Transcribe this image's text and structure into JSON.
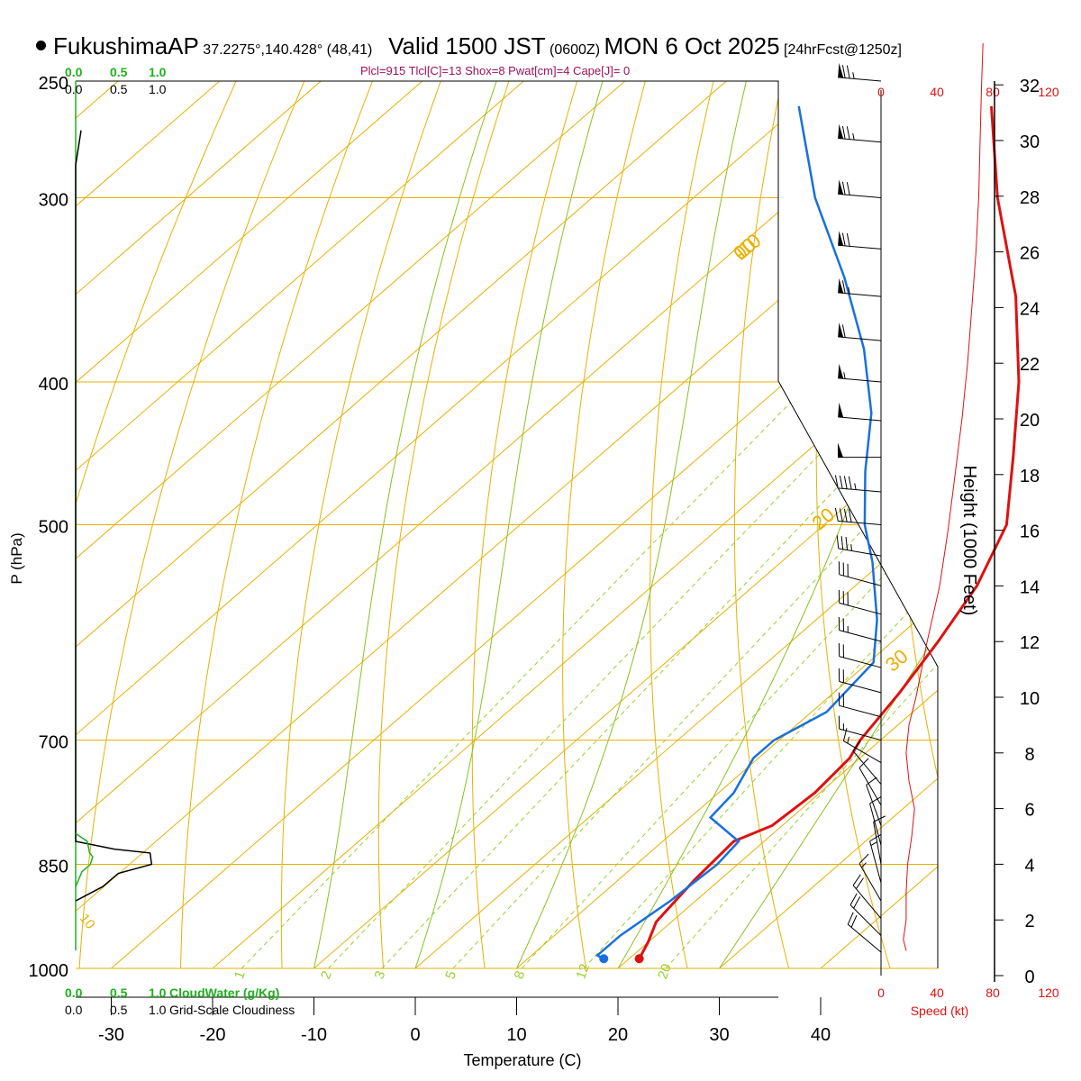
{
  "header": {
    "station": "FukushimaAP",
    "coords": "37.2275°,140.428° (48,41)",
    "valid_main": "Valid 1500 JST",
    "valid_z": "(0600Z)",
    "date": "MON 6 Oct 2025",
    "fcst": "[24hrFcst@1250z]",
    "params": "Plcl=915 Tlcl[C]=13 Shox=8 Pwat[cm]=4 Cape[J]= 0"
  },
  "colors": {
    "isotherm": "#e8b000",
    "dry_adiabat": "#e8b000",
    "moist_adiabat": "#8ac020",
    "mixing_ratio": "#9ad030",
    "temperature": "#e01010",
    "dewpoint": "#1870e0",
    "cloud_water": "#20b020",
    "speed": "#e01010"
  },
  "chart_data": {
    "type": "skew-t",
    "title": "FukushimaAP Valid 1500 JST (0600Z) MON 6 Oct 2025",
    "xlabel": "Temperature (C)",
    "ylabel": "P (hPa)",
    "height_label": "Height (1000 Feet)",
    "x_ticks": [
      -30,
      -20,
      -10,
      0,
      10,
      20,
      30,
      40
    ],
    "p_ticks": [
      250,
      300,
      400,
      500,
      700,
      850,
      1000
    ],
    "height_ticks": [
      0,
      2,
      4,
      6,
      8,
      10,
      12,
      14,
      16,
      18,
      20,
      22,
      24,
      26,
      28,
      30,
      32
    ],
    "isotherm_temps": [
      -140,
      -130,
      -120,
      -110,
      -100,
      -90,
      -80,
      -70,
      -60,
      -50,
      -40,
      -30,
      -20,
      -10,
      0,
      10,
      20,
      30,
      40
    ],
    "dry_adiabat_thetas": [
      230,
      240,
      250,
      260,
      270,
      280,
      290,
      300,
      310,
      320,
      330,
      340,
      350,
      360,
      370,
      380,
      390,
      400,
      410,
      420,
      430,
      440,
      450,
      460,
      470
    ],
    "moist_adiabat_temps": [
      -10,
      0,
      10,
      20,
      30
    ],
    "moist_adiabat_labels": [
      "-10",
      "0",
      "10",
      "20",
      "30"
    ],
    "mixing_ratios": [
      1,
      2,
      3,
      5,
      8,
      12,
      20
    ],
    "mixing_ratio_labels": [
      "1",
      "2",
      "3",
      "5",
      "8",
      "12",
      "20"
    ],
    "temperature": [
      {
        "p": 985,
        "t": 21
      },
      {
        "p": 960,
        "t": 20
      },
      {
        "p": 930,
        "t": 18.5
      },
      {
        "p": 900,
        "t": 18
      },
      {
        "p": 870,
        "t": 17.5
      },
      {
        "p": 820,
        "t": 17
      },
      {
        "p": 800,
        "t": 19
      },
      {
        "p": 760,
        "t": 19.5
      },
      {
        "p": 720,
        "t": 19
      },
      {
        "p": 700,
        "t": 18
      },
      {
        "p": 650,
        "t": 16.5
      },
      {
        "p": 600,
        "t": 14.5
      },
      {
        "p": 550,
        "t": 12
      },
      {
        "p": 500,
        "t": 8
      },
      {
        "p": 450,
        "t": 1
      },
      {
        "p": 400,
        "t": -7
      },
      {
        "p": 350,
        "t": -17
      },
      {
        "p": 300,
        "t": -30
      },
      {
        "p": 260,
        "t": -41
      }
    ],
    "dewpoint": [
      {
        "p": 985,
        "t": 17.5
      },
      {
        "p": 980,
        "t": 16.5
      },
      {
        "p": 950,
        "t": 16.5
      },
      {
        "p": 900,
        "t": 17.5
      },
      {
        "p": 850,
        "t": 18
      },
      {
        "p": 820,
        "t": 17.5
      },
      {
        "p": 790,
        "t": 12
      },
      {
        "p": 760,
        "t": 11.5
      },
      {
        "p": 720,
        "t": 9.5
      },
      {
        "p": 700,
        "t": 9.5
      },
      {
        "p": 670,
        "t": 11.5
      },
      {
        "p": 620,
        "t": 10.5
      },
      {
        "p": 580,
        "t": 6
      },
      {
        "p": 530,
        "t": -1
      },
      {
        "p": 500,
        "t": -6
      },
      {
        "p": 460,
        "t": -12
      },
      {
        "p": 420,
        "t": -18
      },
      {
        "p": 380,
        "t": -26
      },
      {
        "p": 340,
        "t": -36
      },
      {
        "p": 300,
        "t": -48
      },
      {
        "p": 260,
        "t": -60
      }
    ],
    "cloud_water_axis": {
      "label": "CloudWater (g/Kg)",
      "ticks": [
        "0.0",
        "0.5",
        "1.0"
      ],
      "xlim": [
        0,
        1.0
      ]
    },
    "cloudiness_axis": {
      "label": "Grid-Scale Cloudiness",
      "ticks": [
        "0.0",
        "0.5",
        "1.0"
      ],
      "xlim": [
        0,
        1.0
      ]
    },
    "cloud_water": [
      {
        "p": 810,
        "v": 0.0
      },
      {
        "p": 820,
        "v": 0.15
      },
      {
        "p": 835,
        "v": 0.18
      },
      {
        "p": 840,
        "v": 0.22
      },
      {
        "p": 850,
        "v": 0.19
      },
      {
        "p": 860,
        "v": 0.08
      },
      {
        "p": 880,
        "v": 0.0
      }
    ],
    "cloudiness": [
      {
        "p": 270,
        "v": 0.07
      },
      {
        "p": 285,
        "v": 0.0
      },
      {
        "p": 820,
        "v": 0.0
      },
      {
        "p": 830,
        "v": 0.5
      },
      {
        "p": 835,
        "v": 0.96
      },
      {
        "p": 850,
        "v": 0.98
      },
      {
        "p": 862,
        "v": 0.55
      },
      {
        "p": 880,
        "v": 0.35
      },
      {
        "p": 900,
        "v": 0.0
      }
    ],
    "wind_speed_axis": {
      "label": "Speed (kt)",
      "ticks": [
        "0",
        "40",
        "80",
        "120"
      ],
      "xlim": [
        0,
        120
      ]
    },
    "wind_speed_profile": [
      {
        "h": 0.9,
        "s": 18
      },
      {
        "h": 1.3,
        "s": 16
      },
      {
        "h": 2,
        "s": 18
      },
      {
        "h": 3,
        "s": 18
      },
      {
        "h": 4,
        "s": 19
      },
      {
        "h": 5,
        "s": 22
      },
      {
        "h": 6,
        "s": 24
      },
      {
        "h": 7,
        "s": 20
      },
      {
        "h": 8,
        "s": 18
      },
      {
        "h": 9,
        "s": 20
      },
      {
        "h": 10,
        "s": 25
      },
      {
        "h": 12,
        "s": 33
      },
      {
        "h": 14,
        "s": 42
      },
      {
        "h": 16,
        "s": 48
      },
      {
        "h": 18,
        "s": 53
      },
      {
        "h": 20,
        "s": 58
      },
      {
        "h": 22,
        "s": 62
      },
      {
        "h": 24,
        "s": 65
      },
      {
        "h": 26,
        "s": 68
      },
      {
        "h": 28,
        "s": 70
      },
      {
        "h": 30,
        "s": 71
      },
      {
        "h": 32,
        "s": 72
      },
      {
        "h": 33.5,
        "s": 73
      }
    ],
    "wind_barbs": [
      {
        "p": 250,
        "spd": 75,
        "dir": 275
      },
      {
        "p": 275,
        "spd": 75,
        "dir": 275
      },
      {
        "p": 300,
        "spd": 70,
        "dir": 275
      },
      {
        "p": 325,
        "spd": 70,
        "dir": 275
      },
      {
        "p": 350,
        "spd": 65,
        "dir": 275
      },
      {
        "p": 375,
        "spd": 60,
        "dir": 275
      },
      {
        "p": 400,
        "spd": 55,
        "dir": 275
      },
      {
        "p": 425,
        "spd": 50,
        "dir": 275
      },
      {
        "p": 450,
        "spd": 50,
        "dir": 270
      },
      {
        "p": 475,
        "spd": 45,
        "dir": 275
      },
      {
        "p": 500,
        "spd": 40,
        "dir": 275
      },
      {
        "p": 525,
        "spd": 35,
        "dir": 280
      },
      {
        "p": 550,
        "spd": 30,
        "dir": 285
      },
      {
        "p": 575,
        "spd": 28,
        "dir": 285
      },
      {
        "p": 600,
        "spd": 25,
        "dir": 285
      },
      {
        "p": 625,
        "spd": 22,
        "dir": 285
      },
      {
        "p": 650,
        "spd": 20,
        "dir": 285
      },
      {
        "p": 675,
        "spd": 18,
        "dir": 285
      },
      {
        "p": 700,
        "spd": 15,
        "dir": 285
      },
      {
        "p": 725,
        "spd": 15,
        "dir": 300
      },
      {
        "p": 750,
        "spd": 12,
        "dir": 320
      },
      {
        "p": 775,
        "spd": 12,
        "dir": 330
      },
      {
        "p": 800,
        "spd": 10,
        "dir": 340
      },
      {
        "p": 825,
        "spd": 10,
        "dir": 345
      },
      {
        "p": 850,
        "spd": 10,
        "dir": 350
      },
      {
        "p": 875,
        "spd": 15,
        "dir": 345
      },
      {
        "p": 900,
        "spd": 15,
        "dir": 330
      },
      {
        "p": 925,
        "spd": 18,
        "dir": 320
      },
      {
        "p": 950,
        "spd": 20,
        "dir": 315
      },
      {
        "p": 975,
        "spd": 18,
        "dir": 310
      }
    ]
  }
}
